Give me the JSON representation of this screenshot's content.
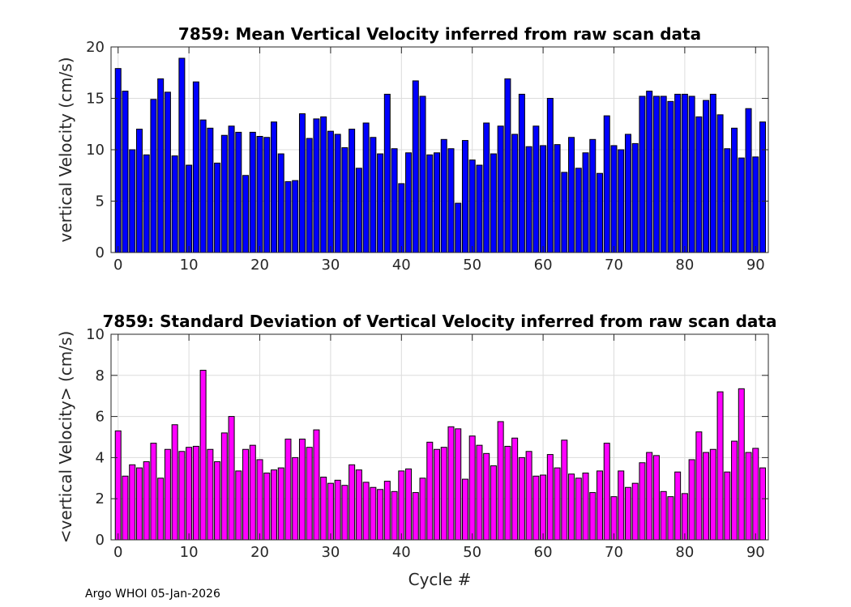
{
  "chart_data": [
    {
      "type": "bar",
      "title": "7859: Mean Vertical Velocity inferred from raw scan data",
      "xlabel": "",
      "ylabel": "vertical Velocity (cm/s)",
      "xlim": [
        -1,
        91.8
      ],
      "ylim": [
        0,
        20
      ],
      "xticks": [
        "0",
        "10",
        "20",
        "30",
        "40",
        "50",
        "60",
        "70",
        "80",
        "90"
      ],
      "yticks": [
        "0",
        "5",
        "10",
        "15",
        "20"
      ],
      "grid": true,
      "color": "#0000ff",
      "x_start": 0,
      "values": [
        17.9,
        15.7,
        10.0,
        12.0,
        9.5,
        14.9,
        16.9,
        15.6,
        9.4,
        18.9,
        8.5,
        16.6,
        12.9,
        12.1,
        8.7,
        11.4,
        12.3,
        11.7,
        7.5,
        11.7,
        11.3,
        11.2,
        12.7,
        9.6,
        6.9,
        7.0,
        13.5,
        11.1,
        13.0,
        13.2,
        11.8,
        11.5,
        10.2,
        12.0,
        8.2,
        12.6,
        11.2,
        9.6,
        15.4,
        10.1,
        6.7,
        9.7,
        16.7,
        15.2,
        9.5,
        9.7,
        11.0,
        10.1,
        4.8,
        10.9,
        9.0,
        8.5,
        12.6,
        9.6,
        12.3,
        16.9,
        11.5,
        15.4,
        10.3,
        12.3,
        10.4,
        15.0,
        10.5,
        7.8,
        11.2,
        8.2,
        9.7,
        11.0,
        7.7,
        13.3,
        10.4,
        10.0,
        11.5,
        10.6,
        15.2,
        15.7,
        15.2,
        15.2,
        14.7,
        15.4,
        15.4,
        15.2,
        13.2,
        14.8,
        15.4,
        13.4,
        10.1,
        12.1,
        9.2,
        14.0,
        9.3,
        12.7
      ]
    },
    {
      "type": "bar",
      "title": "7859: Standard Deviation of Vertical Velocity inferred from raw scan data",
      "xlabel": "Cycle #",
      "ylabel": "<vertical Velocity> (cm/s)",
      "xlim": [
        -1,
        91.8
      ],
      "ylim": [
        0,
        10
      ],
      "xticks": [
        "0",
        "10",
        "20",
        "30",
        "40",
        "50",
        "60",
        "70",
        "80",
        "90"
      ],
      "yticks": [
        "0",
        "2",
        "4",
        "6",
        "8",
        "10"
      ],
      "grid": true,
      "color": "#ff00ff",
      "x_start": 0,
      "values": [
        5.3,
        3.1,
        3.65,
        3.5,
        3.8,
        4.7,
        3.0,
        4.4,
        5.6,
        4.3,
        4.5,
        4.55,
        8.25,
        4.4,
        3.8,
        5.2,
        6.0,
        3.35,
        4.4,
        4.6,
        3.9,
        3.25,
        3.4,
        3.5,
        4.9,
        4.0,
        4.9,
        4.5,
        5.35,
        3.05,
        2.75,
        2.9,
        2.65,
        3.65,
        3.4,
        2.8,
        2.55,
        2.45,
        2.85,
        2.35,
        3.35,
        3.45,
        2.3,
        3.0,
        4.75,
        4.4,
        4.5,
        5.5,
        5.4,
        2.95,
        5.05,
        4.6,
        4.2,
        3.6,
        5.75,
        4.55,
        4.95,
        4.0,
        4.3,
        3.1,
        3.15,
        4.15,
        3.5,
        4.85,
        3.2,
        3.0,
        3.25,
        2.3,
        3.35,
        4.7,
        2.1,
        3.35,
        2.55,
        2.75,
        3.75,
        4.25,
        4.1,
        2.35,
        2.1,
        3.3,
        2.25,
        3.9,
        5.25,
        4.25,
        4.4,
        7.2,
        3.3,
        4.8,
        7.35,
        4.25,
        4.45,
        3.5
      ]
    }
  ],
  "footer": "Argo WHOI 05-Jan-2026"
}
